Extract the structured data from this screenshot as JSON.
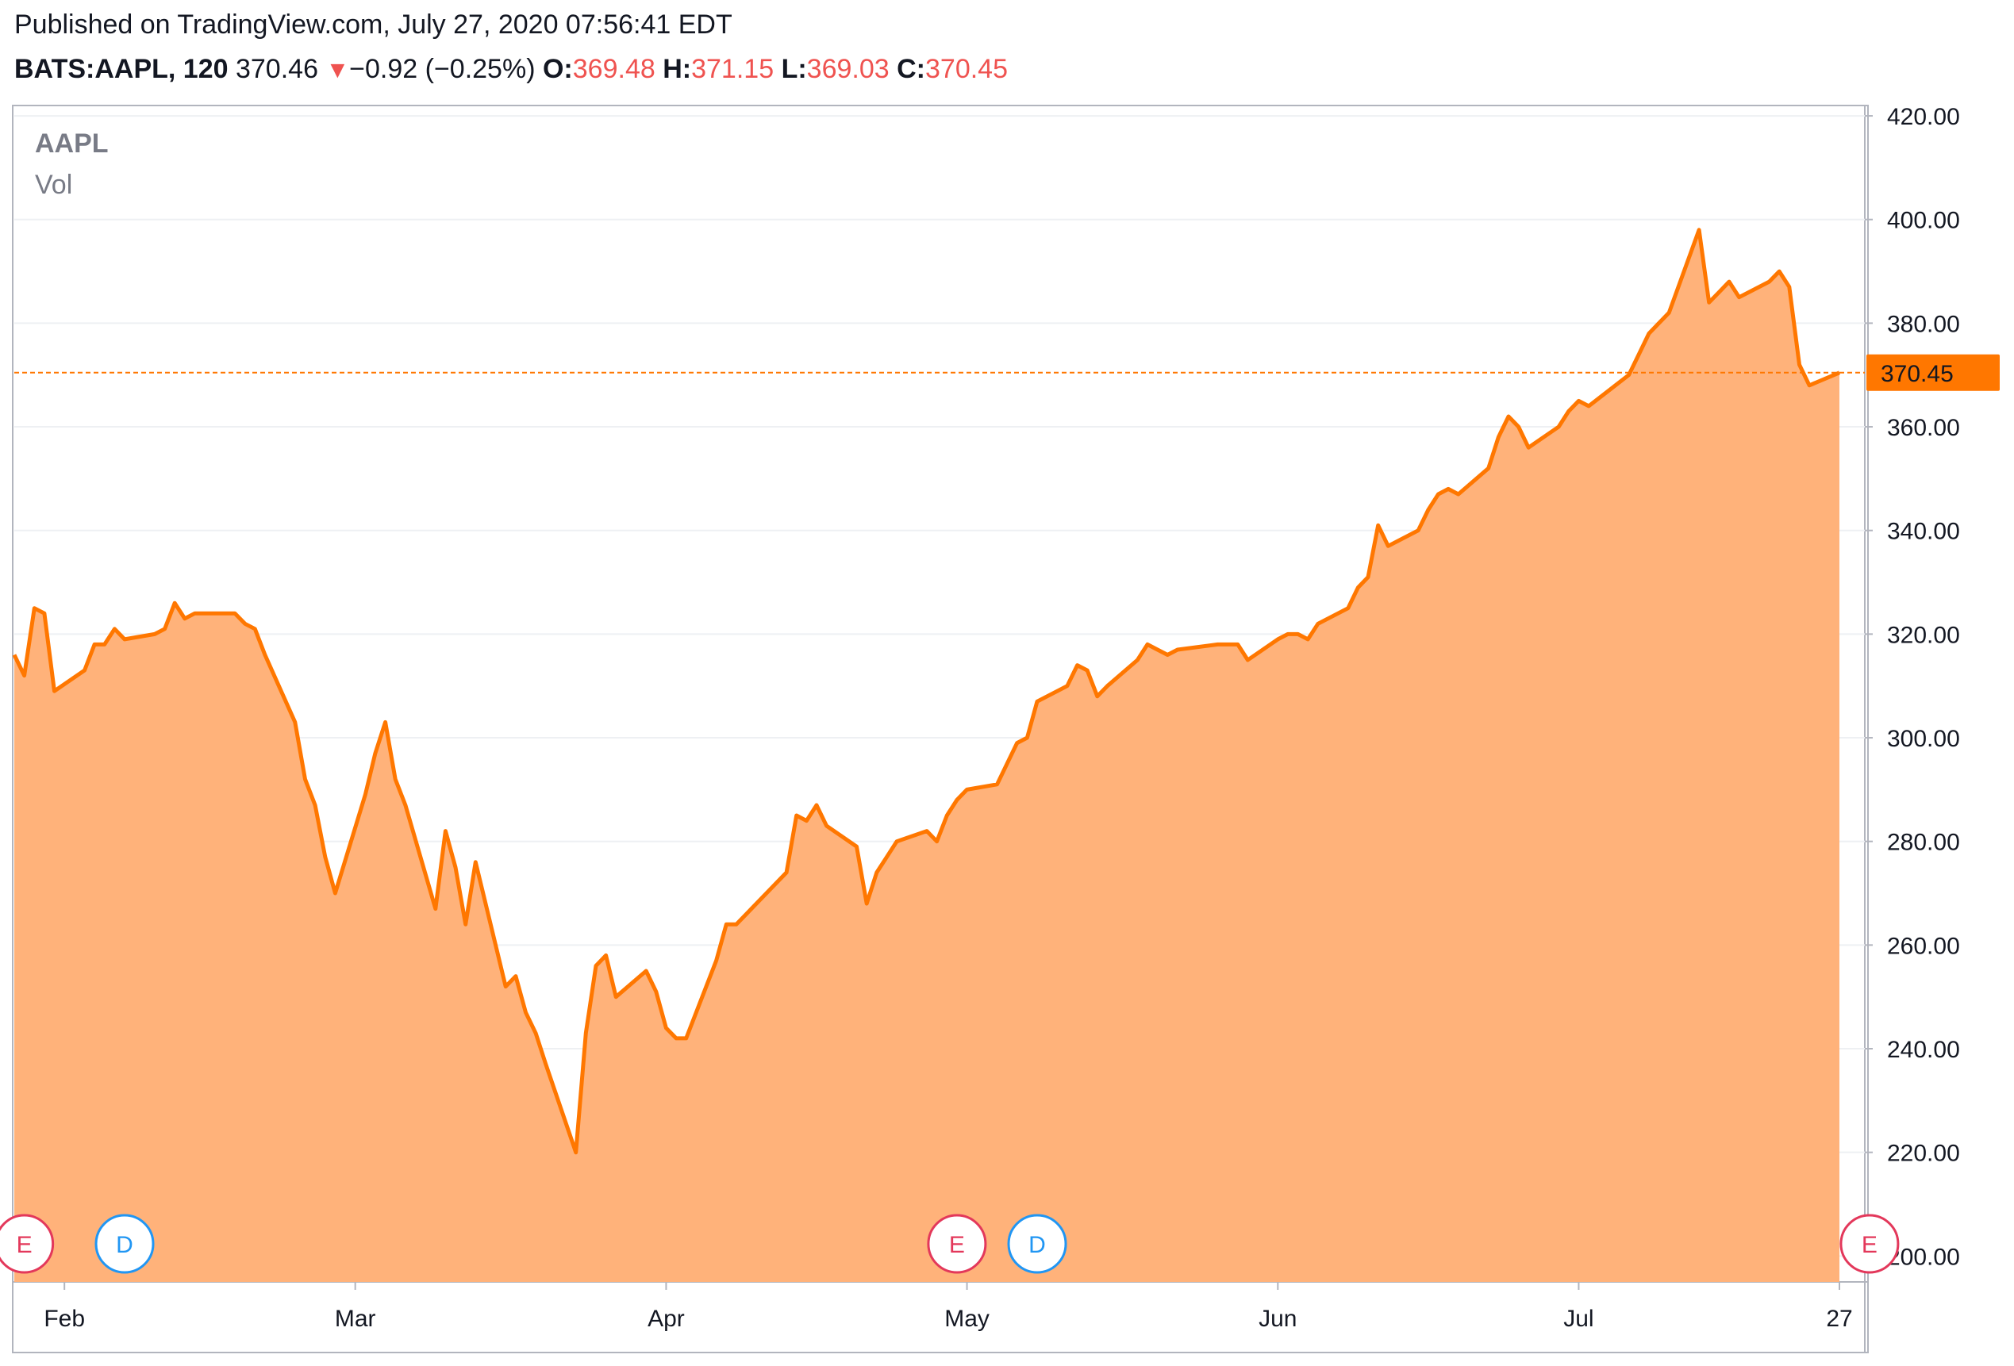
{
  "header": {
    "published": "Published on TradingView.com, July 27, 2020 07:56:41 EDT",
    "symbol": "BATS:AAPL, 120",
    "last": "370.46",
    "change_arrow": "▼",
    "change": "−0.92 (−0.25%)",
    "open_label": "O:",
    "open": "369.48",
    "high_label": "H:",
    "high": "371.15",
    "low_label": "L:",
    "low": "369.03",
    "close_label": "C:",
    "close": "370.45"
  },
  "legend": {
    "series_name": "AAPL",
    "volume_name": "Vol"
  },
  "colors": {
    "line": "#ff7700",
    "area": "#ffb27a",
    "down": "#ef5350",
    "grid": "#eef0f3",
    "earnings_badge": "#e3385b",
    "dividend_badge": "#2196f3",
    "price_label_bg": "#ff7700"
  },
  "events": [
    {
      "type": "E",
      "month_pos": "before Feb",
      "icon": "earnings-badge"
    },
    {
      "type": "D",
      "month_pos": "Feb",
      "icon": "dividend-badge"
    },
    {
      "type": "E",
      "month_pos": "end Apr",
      "icon": "earnings-badge"
    },
    {
      "type": "D",
      "month_pos": "early May",
      "icon": "dividend-badge"
    },
    {
      "type": "E",
      "month_pos": "end Jul",
      "icon": "earnings-badge"
    }
  ],
  "chart_data": {
    "type": "area",
    "ylim": [
      195,
      422
    ],
    "y_ticks": [
      "420.00",
      "400.00",
      "380.00",
      "360.00",
      "340.00",
      "320.00",
      "300.00",
      "280.00",
      "260.00",
      "240.00",
      "220.00",
      "200.00"
    ],
    "x_ticks": [
      "Feb",
      "Mar",
      "Apr",
      "May",
      "Jun",
      "Jul",
      "27"
    ],
    "last_price_label": "370.45",
    "last_price": 370.45,
    "series": [
      {
        "x": [
          "2020-01-27",
          "2020-01-28",
          "2020-01-29",
          "2020-01-30",
          "2020-01-31",
          "2020-02-03",
          "2020-02-04",
          "2020-02-05",
          "2020-02-06",
          "2020-02-07",
          "2020-02-10",
          "2020-02-11",
          "2020-02-12",
          "2020-02-13",
          "2020-02-14",
          "2020-02-18",
          "2020-02-19",
          "2020-02-20",
          "2020-02-21",
          "2020-02-24",
          "2020-02-25",
          "2020-02-26",
          "2020-02-27",
          "2020-02-28",
          "2020-03-02",
          "2020-03-03",
          "2020-03-04",
          "2020-03-05",
          "2020-03-06",
          "2020-03-09",
          "2020-03-10",
          "2020-03-11",
          "2020-03-12",
          "2020-03-13",
          "2020-03-16",
          "2020-03-17",
          "2020-03-18",
          "2020-03-19",
          "2020-03-20",
          "2020-03-23",
          "2020-03-24",
          "2020-03-25",
          "2020-03-26",
          "2020-03-27",
          "2020-03-30",
          "2020-03-31",
          "2020-04-01",
          "2020-04-02",
          "2020-04-03",
          "2020-04-06",
          "2020-04-07",
          "2020-04-08",
          "2020-04-09",
          "2020-04-13",
          "2020-04-14",
          "2020-04-15",
          "2020-04-16",
          "2020-04-17",
          "2020-04-20",
          "2020-04-21",
          "2020-04-22",
          "2020-04-23",
          "2020-04-24",
          "2020-04-27",
          "2020-04-28",
          "2020-04-29",
          "2020-04-30",
          "2020-05-01",
          "2020-05-04",
          "2020-05-05",
          "2020-05-06",
          "2020-05-07",
          "2020-05-08",
          "2020-05-11",
          "2020-05-12",
          "2020-05-13",
          "2020-05-14",
          "2020-05-15",
          "2020-05-18",
          "2020-05-19",
          "2020-05-20",
          "2020-05-21",
          "2020-05-22",
          "2020-05-26",
          "2020-05-27",
          "2020-05-28",
          "2020-05-29",
          "2020-06-01",
          "2020-06-02",
          "2020-06-03",
          "2020-06-04",
          "2020-06-05",
          "2020-06-08",
          "2020-06-09",
          "2020-06-10",
          "2020-06-11",
          "2020-06-12",
          "2020-06-15",
          "2020-06-16",
          "2020-06-17",
          "2020-06-18",
          "2020-06-19",
          "2020-06-22",
          "2020-06-23",
          "2020-06-24",
          "2020-06-25",
          "2020-06-26",
          "2020-06-29",
          "2020-06-30",
          "2020-07-01",
          "2020-07-02",
          "2020-07-06",
          "2020-07-07",
          "2020-07-08",
          "2020-07-09",
          "2020-07-10",
          "2020-07-13",
          "2020-07-14",
          "2020-07-15",
          "2020-07-16",
          "2020-07-17",
          "2020-07-20",
          "2020-07-21",
          "2020-07-22",
          "2020-07-23",
          "2020-07-24",
          "2020-07-27"
        ],
        "values": [
          316,
          312,
          325,
          324,
          309,
          313,
          318,
          318,
          321,
          319,
          320,
          321,
          326,
          323,
          324,
          324,
          322,
          321,
          316,
          303,
          292,
          287,
          277,
          270,
          289,
          297,
          303,
          292,
          287,
          267,
          282,
          275,
          264,
          276,
          252,
          254,
          247,
          243,
          237,
          220,
          243,
          256,
          258,
          250,
          255,
          251,
          244,
          242,
          242,
          257,
          264,
          264,
          266,
          274,
          285,
          284,
          287,
          283,
          279,
          268,
          274,
          277,
          280,
          282,
          280,
          285,
          288,
          290,
          291,
          295,
          299,
          300,
          307,
          310,
          314,
          313,
          308,
          310,
          315,
          318,
          317,
          316,
          317,
          318,
          318,
          318,
          315,
          319,
          320,
          320,
          319,
          322,
          325,
          329,
          331,
          341,
          337,
          340,
          344,
          347,
          348,
          347,
          352,
          358,
          362,
          360,
          356,
          360,
          363,
          365,
          364,
          370,
          374,
          378,
          380,
          382,
          398,
          384,
          386,
          388,
          385,
          388,
          390,
          387,
          372,
          368,
          370.45
        ]
      }
    ],
    "volume_present": true
  }
}
